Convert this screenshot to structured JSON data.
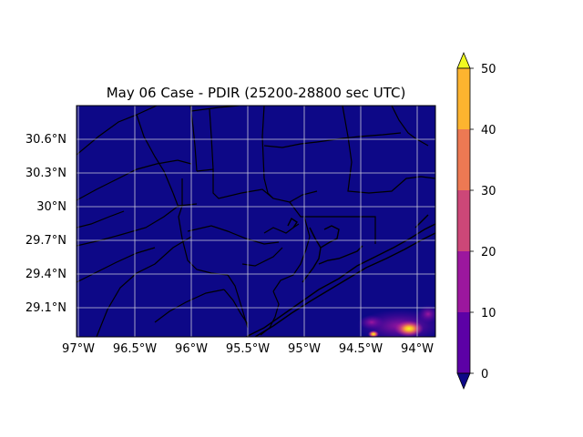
{
  "title": "May 06 Case - PDIR (25200-28800 sec UTC)",
  "map": {
    "lat_labels": [
      "30.6°N",
      "30.3°N",
      "30°N",
      "29.7°N",
      "29.4°N",
      "29.1°N"
    ],
    "lon_labels": [
      "97°W",
      "96.5°W",
      "96°W",
      "95.5°W",
      "95°W",
      "94.5°W",
      "94°W"
    ],
    "background_color": "#0d0887",
    "gridline_color": "#c8c8d8",
    "hotspot_color": "#f0f921"
  },
  "colorbar": {
    "tick_labels": [
      "0",
      "10",
      "20",
      "30",
      "40",
      "50"
    ],
    "colors": [
      "#0d0887",
      "#5c01a6",
      "#9c179e",
      "#cc4778",
      "#ed7953",
      "#fdb42f",
      "#f0f921"
    ]
  }
}
